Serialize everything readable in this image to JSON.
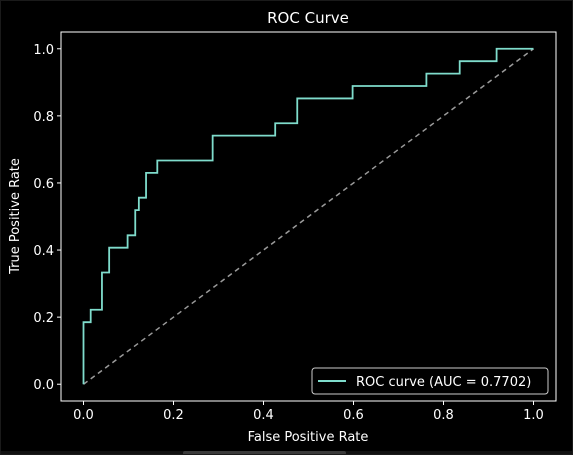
{
  "chart_data": {
    "type": "line",
    "title": "ROC Curve",
    "xlabel": "False Positive Rate",
    "ylabel": "True Positive Rate",
    "xlim": [
      -0.05,
      1.05
    ],
    "ylim": [
      -0.05,
      1.05
    ],
    "xticks": [
      "0.0",
      "0.2",
      "0.4",
      "0.6",
      "0.8",
      "1.0"
    ],
    "yticks": [
      "0.0",
      "0.2",
      "0.4",
      "0.6",
      "0.8",
      "1.0"
    ],
    "grid": false,
    "legend_position": "lower-right",
    "series": [
      {
        "name": "ROC curve (AUC = 0.7702)",
        "color": "#7fdccc",
        "x": [
          0.0,
          0.0,
          0.016,
          0.016,
          0.041,
          0.041,
          0.057,
          0.057,
          0.098,
          0.098,
          0.115,
          0.115,
          0.123,
          0.123,
          0.139,
          0.139,
          0.164,
          0.164,
          0.287,
          0.287,
          0.426,
          0.426,
          0.475,
          0.475,
          0.598,
          0.598,
          0.762,
          0.762,
          0.836,
          0.836,
          0.918,
          0.918,
          1.0
        ],
        "y": [
          0.0,
          0.185,
          0.185,
          0.222,
          0.222,
          0.333,
          0.333,
          0.407,
          0.407,
          0.444,
          0.444,
          0.519,
          0.519,
          0.556,
          0.556,
          0.63,
          0.63,
          0.667,
          0.667,
          0.741,
          0.741,
          0.778,
          0.778,
          0.852,
          0.852,
          0.889,
          0.889,
          0.926,
          0.926,
          0.963,
          0.963,
          1.0,
          1.0
        ]
      }
    ],
    "reference_line": {
      "x": [
        0,
        1
      ],
      "y": [
        0,
        1
      ],
      "color": "#9a9a9a",
      "style": "dashed"
    }
  },
  "colors": {
    "background": "#000000",
    "axes": "#ffffff",
    "text": "#ffffff"
  }
}
